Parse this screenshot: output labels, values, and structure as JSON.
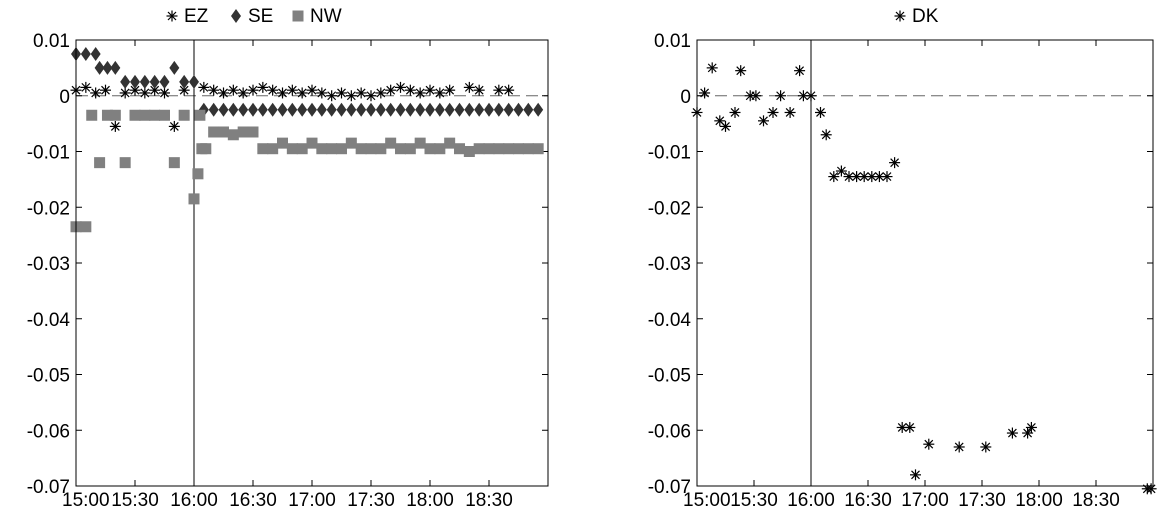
{
  "chart_data": [
    {
      "type": "scatter",
      "x_tick_labels": [
        "15:00",
        "15:30",
        "16:00",
        "16:30",
        "17:00",
        "17:30",
        "18:00",
        "18:30"
      ],
      "x_range": [
        "15:00",
        "19:00"
      ],
      "ylim": [
        -0.07,
        0.01
      ],
      "y_ticks": [
        "0.01",
        "0",
        "-0.01",
        "-0.02",
        "-0.03",
        "-0.04",
        "-0.05",
        "-0.06",
        "-0.07"
      ],
      "reference_lines": {
        "horizontal_dashed_y": 0,
        "vertical_x": "16:00"
      },
      "legend_position": "top-outside",
      "series": [
        {
          "name": "EZ",
          "marker": "star",
          "color": "#000000",
          "points": [
            [
              "15:00",
              0.001
            ],
            [
              "15:05",
              0.0015
            ],
            [
              "15:10",
              0.0005
            ],
            [
              "15:15",
              0.001
            ],
            [
              "15:20",
              -0.0055
            ],
            [
              "15:25",
              0.0005
            ],
            [
              "15:30",
              0.001
            ],
            [
              "15:35",
              0.0005
            ],
            [
              "15:40",
              0.001
            ],
            [
              "15:45",
              0.0005
            ],
            [
              "15:50",
              -0.0055
            ],
            [
              "15:55",
              0.001
            ],
            [
              "16:05",
              0.0015
            ],
            [
              "16:10",
              0.001
            ],
            [
              "16:15",
              0.0005
            ],
            [
              "16:20",
              0.001
            ],
            [
              "16:25",
              0.0005
            ],
            [
              "16:30",
              0.001
            ],
            [
              "16:35",
              0.0015
            ],
            [
              "16:40",
              0.001
            ],
            [
              "16:45",
              0.0005
            ],
            [
              "16:50",
              0.001
            ],
            [
              "16:55",
              0.0005
            ],
            [
              "17:00",
              0.001
            ],
            [
              "17:05",
              0.0005
            ],
            [
              "17:10",
              0.0
            ],
            [
              "17:15",
              0.0005
            ],
            [
              "17:20",
              0.0
            ],
            [
              "17:25",
              0.0005
            ],
            [
              "17:30",
              0.0
            ],
            [
              "17:35",
              0.0005
            ],
            [
              "17:40",
              0.001
            ],
            [
              "17:45",
              0.0015
            ],
            [
              "17:50",
              0.001
            ],
            [
              "17:55",
              0.0005
            ],
            [
              "18:00",
              0.001
            ],
            [
              "18:05",
              0.0005
            ],
            [
              "18:10",
              0.001
            ],
            [
              "18:20",
              0.0015
            ],
            [
              "18:25",
              0.001
            ],
            [
              "18:35",
              0.001
            ],
            [
              "18:40",
              0.001
            ]
          ]
        },
        {
          "name": "SE",
          "marker": "diamond",
          "color": "#333333",
          "points": [
            [
              "15:00",
              0.0075
            ],
            [
              "15:05",
              0.0075
            ],
            [
              "15:10",
              0.0075
            ],
            [
              "15:12",
              0.005
            ],
            [
              "15:16",
              0.005
            ],
            [
              "15:20",
              0.005
            ],
            [
              "15:25",
              0.0025
            ],
            [
              "15:30",
              0.0025
            ],
            [
              "15:35",
              0.0025
            ],
            [
              "15:40",
              0.0025
            ],
            [
              "15:45",
              0.0025
            ],
            [
              "15:50",
              0.005
            ],
            [
              "15:55",
              0.0025
            ],
            [
              "16:00",
              0.0025
            ],
            [
              "16:05",
              -0.0025
            ],
            [
              "16:10",
              -0.0025
            ],
            [
              "16:15",
              -0.0025
            ],
            [
              "16:20",
              -0.0025
            ],
            [
              "16:25",
              -0.0025
            ],
            [
              "16:30",
              -0.0025
            ],
            [
              "16:35",
              -0.0025
            ],
            [
              "16:40",
              -0.0025
            ],
            [
              "16:45",
              -0.0025
            ],
            [
              "16:50",
              -0.0025
            ],
            [
              "16:55",
              -0.0025
            ],
            [
              "17:00",
              -0.0025
            ],
            [
              "17:05",
              -0.0025
            ],
            [
              "17:10",
              -0.0025
            ],
            [
              "17:15",
              -0.0025
            ],
            [
              "17:20",
              -0.0025
            ],
            [
              "17:25",
              -0.0025
            ],
            [
              "17:30",
              -0.0025
            ],
            [
              "17:35",
              -0.0025
            ],
            [
              "17:40",
              -0.0025
            ],
            [
              "17:45",
              -0.0025
            ],
            [
              "17:50",
              -0.0025
            ],
            [
              "17:55",
              -0.0025
            ],
            [
              "18:00",
              -0.0025
            ],
            [
              "18:05",
              -0.0025
            ],
            [
              "18:10",
              -0.0025
            ],
            [
              "18:15",
              -0.0025
            ],
            [
              "18:20",
              -0.0025
            ],
            [
              "18:25",
              -0.0025
            ],
            [
              "18:30",
              -0.0025
            ],
            [
              "18:35",
              -0.0025
            ],
            [
              "18:40",
              -0.0025
            ],
            [
              "18:45",
              -0.0025
            ],
            [
              "18:50",
              -0.0025
            ],
            [
              "18:55",
              -0.0025
            ]
          ]
        },
        {
          "name": "NW",
          "marker": "square",
          "color": "#808080",
          "points": [
            [
              "15:00",
              -0.0235
            ],
            [
              "15:05",
              -0.0235
            ],
            [
              "15:08",
              -0.0035
            ],
            [
              "15:12",
              -0.012
            ],
            [
              "15:16",
              -0.0035
            ],
            [
              "15:20",
              -0.0035
            ],
            [
              "15:25",
              -0.012
            ],
            [
              "15:30",
              -0.0035
            ],
            [
              "15:35",
              -0.0035
            ],
            [
              "15:40",
              -0.0035
            ],
            [
              "15:45",
              -0.0035
            ],
            [
              "15:50",
              -0.012
            ],
            [
              "15:55",
              -0.0035
            ],
            [
              "16:00",
              -0.0185
            ],
            [
              "16:02",
              -0.014
            ],
            [
              "16:03",
              -0.0035
            ],
            [
              "16:04",
              -0.0095
            ],
            [
              "16:06",
              -0.0095
            ],
            [
              "16:10",
              -0.0065
            ],
            [
              "16:15",
              -0.0065
            ],
            [
              "16:20",
              -0.007
            ],
            [
              "16:25",
              -0.0065
            ],
            [
              "16:30",
              -0.0065
            ],
            [
              "16:35",
              -0.0095
            ],
            [
              "16:40",
              -0.0095
            ],
            [
              "16:45",
              -0.0085
            ],
            [
              "16:50",
              -0.0095
            ],
            [
              "16:55",
              -0.0095
            ],
            [
              "17:00",
              -0.0085
            ],
            [
              "17:05",
              -0.0095
            ],
            [
              "17:10",
              -0.0095
            ],
            [
              "17:15",
              -0.0095
            ],
            [
              "17:20",
              -0.0085
            ],
            [
              "17:25",
              -0.0095
            ],
            [
              "17:30",
              -0.0095
            ],
            [
              "17:35",
              -0.0095
            ],
            [
              "17:40",
              -0.0085
            ],
            [
              "17:45",
              -0.0095
            ],
            [
              "17:50",
              -0.0095
            ],
            [
              "17:55",
              -0.0085
            ],
            [
              "18:00",
              -0.0095
            ],
            [
              "18:05",
              -0.0095
            ],
            [
              "18:10",
              -0.0085
            ],
            [
              "18:15",
              -0.0095
            ],
            [
              "18:20",
              -0.01
            ],
            [
              "18:25",
              -0.0095
            ],
            [
              "18:30",
              -0.0095
            ],
            [
              "18:35",
              -0.0095
            ],
            [
              "18:40",
              -0.0095
            ],
            [
              "18:45",
              -0.0095
            ],
            [
              "18:50",
              -0.0095
            ],
            [
              "18:55",
              -0.0095
            ]
          ]
        }
      ]
    },
    {
      "type": "scatter",
      "x_tick_labels": [
        "15:00",
        "15:30",
        "16:00",
        "16:30",
        "17:00",
        "17:30",
        "18:00",
        "18:30"
      ],
      "x_range": [
        "15:00",
        "19:00"
      ],
      "ylim": [
        -0.07,
        0.01
      ],
      "y_ticks": [
        "0.01",
        "0",
        "-0.01",
        "-0.02",
        "-0.03",
        "-0.04",
        "-0.05",
        "-0.06",
        "-0.07"
      ],
      "reference_lines": {
        "horizontal_dashed_y": 0,
        "vertical_x": "16:00"
      },
      "legend_position": "top-outside",
      "series": [
        {
          "name": "DK",
          "marker": "star",
          "color": "#000000",
          "points": [
            [
              "15:00",
              -0.003
            ],
            [
              "15:04",
              0.0005
            ],
            [
              "15:08",
              0.005
            ],
            [
              "15:12",
              -0.0045
            ],
            [
              "15:15",
              -0.0055
            ],
            [
              "15:20",
              -0.003
            ],
            [
              "15:23",
              0.0045
            ],
            [
              "15:28",
              0.0
            ],
            [
              "15:31",
              0.0
            ],
            [
              "15:35",
              -0.0045
            ],
            [
              "15:40",
              -0.003
            ],
            [
              "15:44",
              0.0
            ],
            [
              "15:49",
              -0.003
            ],
            [
              "15:54",
              0.0045
            ],
            [
              "15:56",
              0.0
            ],
            [
              "16:00",
              0.0
            ],
            [
              "16:05",
              -0.003
            ],
            [
              "16:08",
              -0.007
            ],
            [
              "16:12",
              -0.0145
            ],
            [
              "16:16",
              -0.0135
            ],
            [
              "16:20",
              -0.0145
            ],
            [
              "16:24",
              -0.0145
            ],
            [
              "16:28",
              -0.0145
            ],
            [
              "16:32",
              -0.0145
            ],
            [
              "16:36",
              -0.0145
            ],
            [
              "16:40",
              -0.0145
            ],
            [
              "16:44",
              -0.012
            ],
            [
              "16:48",
              -0.0595
            ],
            [
              "16:52",
              -0.0595
            ],
            [
              "16:55",
              -0.068
            ],
            [
              "17:02",
              -0.0625
            ],
            [
              "17:18",
              -0.063
            ],
            [
              "17:32",
              -0.063
            ],
            [
              "17:46",
              -0.0605
            ],
            [
              "17:54",
              -0.0605
            ],
            [
              "17:56",
              -0.0595
            ],
            [
              "18:57",
              -0.0705
            ],
            [
              "18:59",
              -0.0705
            ]
          ]
        }
      ]
    }
  ]
}
